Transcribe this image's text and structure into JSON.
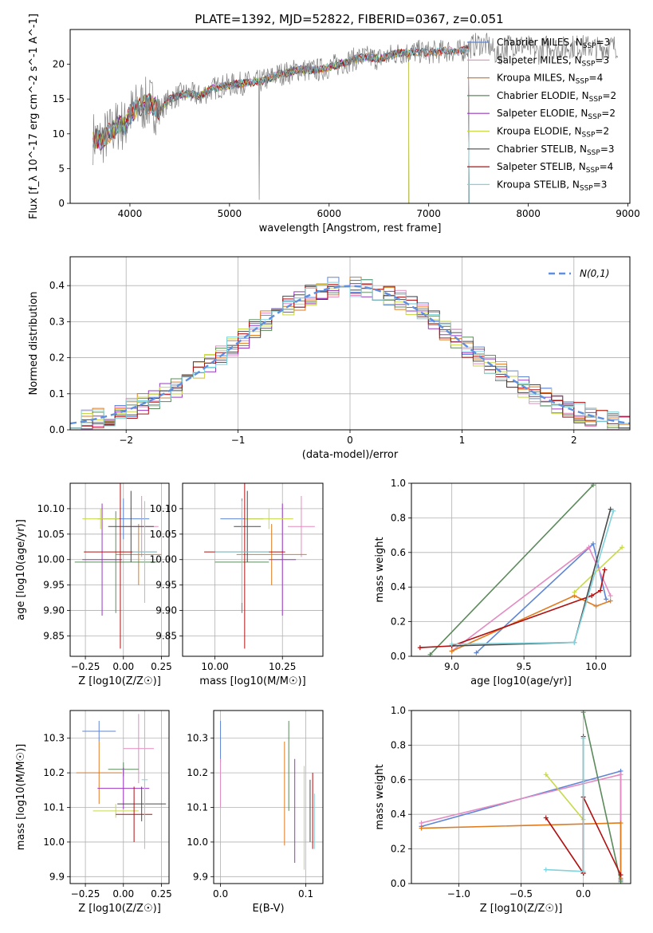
{
  "figure": {
    "title": "PLATE=1392, MJD=52822, FIBERID=0367, z=0.051"
  },
  "chart_data": [
    {
      "id": "spectrum",
      "type": "line",
      "xlabel": "wavelength [Angstrom, rest frame]",
      "ylabel": "Flux [f_λ 10^-17 erg cm^-2 s^-1 A^-1]",
      "xlim": [
        3400,
        9020
      ],
      "ylim": [
        0,
        25
      ],
      "xticks": [
        4000,
        5000,
        6000,
        7000,
        8000,
        9000
      ],
      "yticks": [
        0,
        5,
        10,
        15,
        20
      ],
      "legend_position": "right",
      "data_x": [
        3630,
        3700,
        3800,
        3900,
        3950,
        4000,
        4100,
        4200,
        4300,
        4400,
        4500,
        4600,
        4700,
        4800,
        4900,
        5000,
        5100,
        5200,
        5300,
        5400,
        5500,
        5600,
        5700,
        5800,
        5900,
        6000,
        6100,
        6200,
        6300,
        6400,
        6500,
        6600,
        6700,
        6800,
        6900,
        7000,
        7100,
        7200,
        7300,
        7400,
        7500,
        7600,
        7700,
        7800,
        7900,
        8000,
        8100,
        8200,
        8300,
        8400,
        8500,
        8600,
        8700,
        8800,
        8900
      ],
      "data_y": [
        9.5,
        9.0,
        10.2,
        11.5,
        11.0,
        12.8,
        14.0,
        14.4,
        13.4,
        15.0,
        15.6,
        15.8,
        15.4,
        16.3,
        16.8,
        17.0,
        17.2,
        17.4,
        17.5,
        18.0,
        18.6,
        18.8,
        19.3,
        19.1,
        19.2,
        19.6,
        20.0,
        20.5,
        20.9,
        21.0,
        20.8,
        21.2,
        21.6,
        21.7,
        21.8,
        21.7,
        21.8,
        22.0,
        21.8,
        22.4,
        23.0,
        22.7,
        21.2,
        22.8,
        22.8,
        22.5,
        21.6,
        22.8,
        22.2,
        22.5,
        22.6,
        22.5,
        22.3,
        22.5,
        22.6
      ],
      "series": [
        {
          "name": "Chabrier MILES, N_SSP=3",
          "color": "#5f86d6",
          "xmax": 7400
        },
        {
          "name": "Salpeter MILES, N_SSP=3",
          "color": "#e38bc2",
          "xmax": 7400
        },
        {
          "name": "Kroupa MILES, N_SSP=4",
          "color": "#e07b1e",
          "xmax": 7400
        },
        {
          "name": "Chabrier ELODIE, N_SSP=2",
          "color": "#5b8a5b",
          "xmax": 6800
        },
        {
          "name": "Salpeter ELODIE, N_SSP=2",
          "color": "#9a38c0",
          "xmax": 6800
        },
        {
          "name": "Kroupa ELODIE, N_SSP=2",
          "color": "#c9d94a",
          "xmax": 6800
        },
        {
          "name": "Chabrier STELIB, N_SSP=3",
          "color": "#4a4a4a",
          "xmax": 7400
        },
        {
          "name": "Salpeter STELIB, N_SSP=4",
          "color": "#b01010",
          "xmax": 7400
        },
        {
          "name": "Kroupa STELIB, N_SSP=3",
          "color": "#7fd3dc",
          "xmax": 7400
        }
      ]
    },
    {
      "id": "residual-histogram",
      "type": "line",
      "xlabel": "(data-model)/error",
      "ylabel": "Normed distribution",
      "xlim": [
        -2.5,
        2.5
      ],
      "ylim": [
        0,
        0.48
      ],
      "xticks": [
        -2,
        -1,
        0,
        1,
        2
      ],
      "yticks": [
        0.0,
        0.1,
        0.2,
        0.3,
        0.4
      ],
      "legend_entry": "N(0,1)",
      "legend_position": "top-right",
      "bin_width": 0.1,
      "bins_start": -2.5
    },
    {
      "id": "age-vs-Z",
      "type": "scatter",
      "xlabel": "Z [log10(Z/Z☉)]",
      "ylabel": "age [log10(age/yr)]",
      "xlim": [
        -0.35,
        0.3
      ],
      "ylim": [
        9.81,
        10.15
      ],
      "xticks": [
        -0.25,
        0.0,
        0.25
      ],
      "yticks": [
        9.85,
        9.9,
        9.95,
        10.0,
        10.05,
        10.1
      ],
      "points": [
        {
          "x": 0.0,
          "y": 10.08,
          "xerr": 0.17,
          "yerr": 0.04
        },
        {
          "x": 0.12,
          "y": 10.065,
          "xerr": 0.11,
          "yerr": 0.06
        },
        {
          "x": 0.1,
          "y": 10.01,
          "xerr": 0.15,
          "yerr": 0.06
        },
        {
          "x": -0.05,
          "y": 9.995,
          "xerr": 0.27,
          "yerr": 0.1
        },
        {
          "x": -0.14,
          "y": 10.0,
          "xerr": 0.13,
          "yerr": 0.11
        },
        {
          "x": -0.15,
          "y": 10.08,
          "xerr": 0.12,
          "yerr": 0.02
        },
        {
          "x": 0.05,
          "y": 10.065,
          "xerr": 0.15,
          "yerr": 0.07
        },
        {
          "x": -0.02,
          "y": 10.015,
          "xerr": 0.24,
          "yerr": 0.19
        },
        {
          "x": 0.14,
          "y": 10.015,
          "xerr": 0.08,
          "yerr": 0.1
        }
      ]
    },
    {
      "id": "age-vs-mass",
      "type": "scatter",
      "xlabel": "mass [log10(M/M☉)]",
      "ylabel": "",
      "xlim": [
        9.88,
        10.4
      ],
      "ylim": [
        9.81,
        10.15
      ],
      "xticks": [
        10.0,
        10.25
      ],
      "yticks": [
        9.85,
        9.9,
        9.95,
        10.0,
        10.05,
        10.1
      ],
      "points": [
        {
          "x": 10.1,
          "y": 10.08,
          "xerr": 0.08,
          "yerr": 0.04
        },
        {
          "x": 10.32,
          "y": 10.065,
          "xerr": 0.05,
          "yerr": 0.06
        },
        {
          "x": 10.21,
          "y": 10.01,
          "xerr": 0.13,
          "yerr": 0.06
        },
        {
          "x": 10.1,
          "y": 9.995,
          "xerr": 0.1,
          "yerr": 0.1
        },
        {
          "x": 10.25,
          "y": 10.0,
          "xerr": 0.05,
          "yerr": 0.11
        },
        {
          "x": 10.2,
          "y": 10.08,
          "xerr": 0.09,
          "yerr": 0.02
        },
        {
          "x": 10.12,
          "y": 10.065,
          "xerr": 0.05,
          "yerr": 0.07
        },
        {
          "x": 10.11,
          "y": 10.015,
          "xerr": 0.15,
          "yerr": 0.19
        },
        {
          "x": 10.1,
          "y": 10.015,
          "xerr": 0.1,
          "yerr": 0.1
        }
      ]
    },
    {
      "id": "massweight-vs-age",
      "type": "line",
      "xlabel": "age [log10(age/yr)]",
      "ylabel": "mass weight",
      "xlim": [
        8.72,
        10.24
      ],
      "ylim": [
        0,
        1
      ],
      "xticks": [
        9.0,
        9.5,
        10.0
      ],
      "yticks": [
        0.0,
        0.2,
        0.4,
        0.6,
        0.8,
        1.0
      ],
      "series": [
        {
          "color": "#5f86d6",
          "x": [
            9.17,
            9.98,
            10.07
          ],
          "y": [
            0.02,
            0.65,
            0.33
          ]
        },
        {
          "color": "#e38bc2",
          "x": [
            9.0,
            9.95,
            10.1
          ],
          "y": [
            0.03,
            0.63,
            0.35
          ]
        },
        {
          "color": "#e07b1e",
          "x": [
            9.0,
            9.85,
            10.0,
            10.1
          ],
          "y": [
            0.03,
            0.35,
            0.29,
            0.32
          ]
        },
        {
          "color": "#5b8a5b",
          "x": [
            8.85,
            9.98
          ],
          "y": [
            0.01,
            0.99
          ]
        },
        {
          "color": "#c9d94a",
          "x": [
            9.85,
            10.18
          ],
          "y": [
            0.37,
            0.63
          ]
        },
        {
          "color": "#4a4a4a",
          "x": [
            9.0,
            9.85,
            10.1
          ],
          "y": [
            0.06,
            0.08,
            0.85
          ]
        },
        {
          "color": "#b01010",
          "x": [
            8.78,
            9.0,
            9.97,
            10.03,
            10.06
          ],
          "y": [
            0.05,
            0.06,
            0.35,
            0.38,
            0.5
          ]
        },
        {
          "color": "#7fd3dc",
          "x": [
            9.0,
            9.85,
            10.12
          ],
          "y": [
            0.07,
            0.08,
            0.84
          ]
        }
      ]
    },
    {
      "id": "mass-vs-Z",
      "type": "scatter",
      "xlabel": "Z [log10(Z/Z☉)]",
      "ylabel": "mass [log10(M/M☉)]",
      "xlim": [
        -0.35,
        0.3
      ],
      "ylim": [
        9.88,
        10.38
      ],
      "xticks": [
        -0.25,
        0.0,
        0.25
      ],
      "yticks": [
        9.9,
        10.0,
        10.1,
        10.2,
        10.3
      ],
      "points": [
        {
          "x": -0.16,
          "y": 10.32,
          "xerr": 0.11,
          "yerr": 0.03
        },
        {
          "x": 0.1,
          "y": 10.27,
          "xerr": 0.1,
          "yerr": 0.1
        },
        {
          "x": -0.16,
          "y": 10.2,
          "xerr": 0.15,
          "yerr": 0.09
        },
        {
          "x": 0.0,
          "y": 10.21,
          "xerr": 0.1,
          "yerr": 0.02
        },
        {
          "x": 0.0,
          "y": 10.155,
          "xerr": 0.17,
          "yerr": 0.06
        },
        {
          "x": -0.05,
          "y": 10.09,
          "xerr": 0.15,
          "yerr": 0.02
        },
        {
          "x": 0.12,
          "y": 10.11,
          "xerr": 0.16,
          "yerr": 0.05
        },
        {
          "x": 0.07,
          "y": 10.08,
          "xerr": 0.12,
          "yerr": 0.08
        },
        {
          "x": 0.14,
          "y": 10.18,
          "xerr": 0.02,
          "yerr": 0.2
        }
      ]
    },
    {
      "id": "mass-vs-ebv",
      "type": "scatter",
      "xlabel": "E(B-V)",
      "ylabel": "",
      "xlim": [
        -0.008,
        0.12
      ],
      "ylim": [
        9.88,
        10.38
      ],
      "xticks": [
        0.0,
        0.1
      ],
      "yticks": [
        9.9,
        10.0,
        10.1,
        10.2,
        10.3
      ],
      "points": [
        {
          "x": 0.0,
          "y": 10.29,
          "xerr": 0,
          "yerr": 0.06
        },
        {
          "x": 0.0,
          "y": 10.17,
          "xerr": 0,
          "yerr": 0.07
        },
        {
          "x": 0.075,
          "y": 10.14,
          "xerr": 0,
          "yerr": 0.15
        },
        {
          "x": 0.08,
          "y": 10.22,
          "xerr": 0,
          "yerr": 0.13
        },
        {
          "x": 0.087,
          "y": 10.09,
          "xerr": 0,
          "yerr": 0.15
        },
        {
          "x": 0.098,
          "y": 10.07,
          "xerr": 0,
          "yerr": 0.15
        },
        {
          "x": 0.105,
          "y": 10.09,
          "xerr": 0,
          "yerr": 0.09
        },
        {
          "x": 0.108,
          "y": 10.09,
          "xerr": 0,
          "yerr": 0.11
        },
        {
          "x": 0.11,
          "y": 10.06,
          "xerr": 0,
          "yerr": 0.08
        }
      ]
    },
    {
      "id": "massweight-vs-Z",
      "type": "line",
      "xlabel": "Z [log10(Z/Z☉)]",
      "ylabel": "mass weight",
      "xlim": [
        -1.38,
        0.38
      ],
      "ylim": [
        0,
        1
      ],
      "xticks": [
        -1.0,
        -0.5,
        0.0
      ],
      "yticks": [
        0.0,
        0.2,
        0.4,
        0.6,
        0.8,
        1.0
      ],
      "series": [
        {
          "color": "#5f86d6",
          "x": [
            -1.3,
            0.3,
            0.3
          ],
          "y": [
            0.33,
            0.65,
            0.02
          ]
        },
        {
          "color": "#e38bc2",
          "x": [
            -1.3,
            0.3,
            0.3
          ],
          "y": [
            0.35,
            0.63,
            0.03
          ]
        },
        {
          "color": "#e07b1e",
          "x": [
            -1.3,
            0.3,
            0.3
          ],
          "y": [
            0.32,
            0.35,
            0.03
          ]
        },
        {
          "color": "#5b8a5b",
          "x": [
            0.0,
            0.3
          ],
          "y": [
            0.99,
            0.01
          ]
        },
        {
          "color": "#c9d94a",
          "x": [
            -0.3,
            0.0
          ],
          "y": [
            0.63,
            0.37
          ]
        },
        {
          "color": "#4a4a4a",
          "x": [
            0.0,
            0.0
          ],
          "y": [
            0.85,
            0.06
          ]
        },
        {
          "color": "#b01010",
          "x": [
            -0.3,
            0.0,
            0.0,
            0.3
          ],
          "y": [
            0.38,
            0.06,
            0.5,
            0.05
          ]
        },
        {
          "color": "#7fd3dc",
          "x": [
            -0.3,
            0.0,
            0.0
          ],
          "y": [
            0.08,
            0.07,
            0.84
          ]
        }
      ]
    }
  ]
}
